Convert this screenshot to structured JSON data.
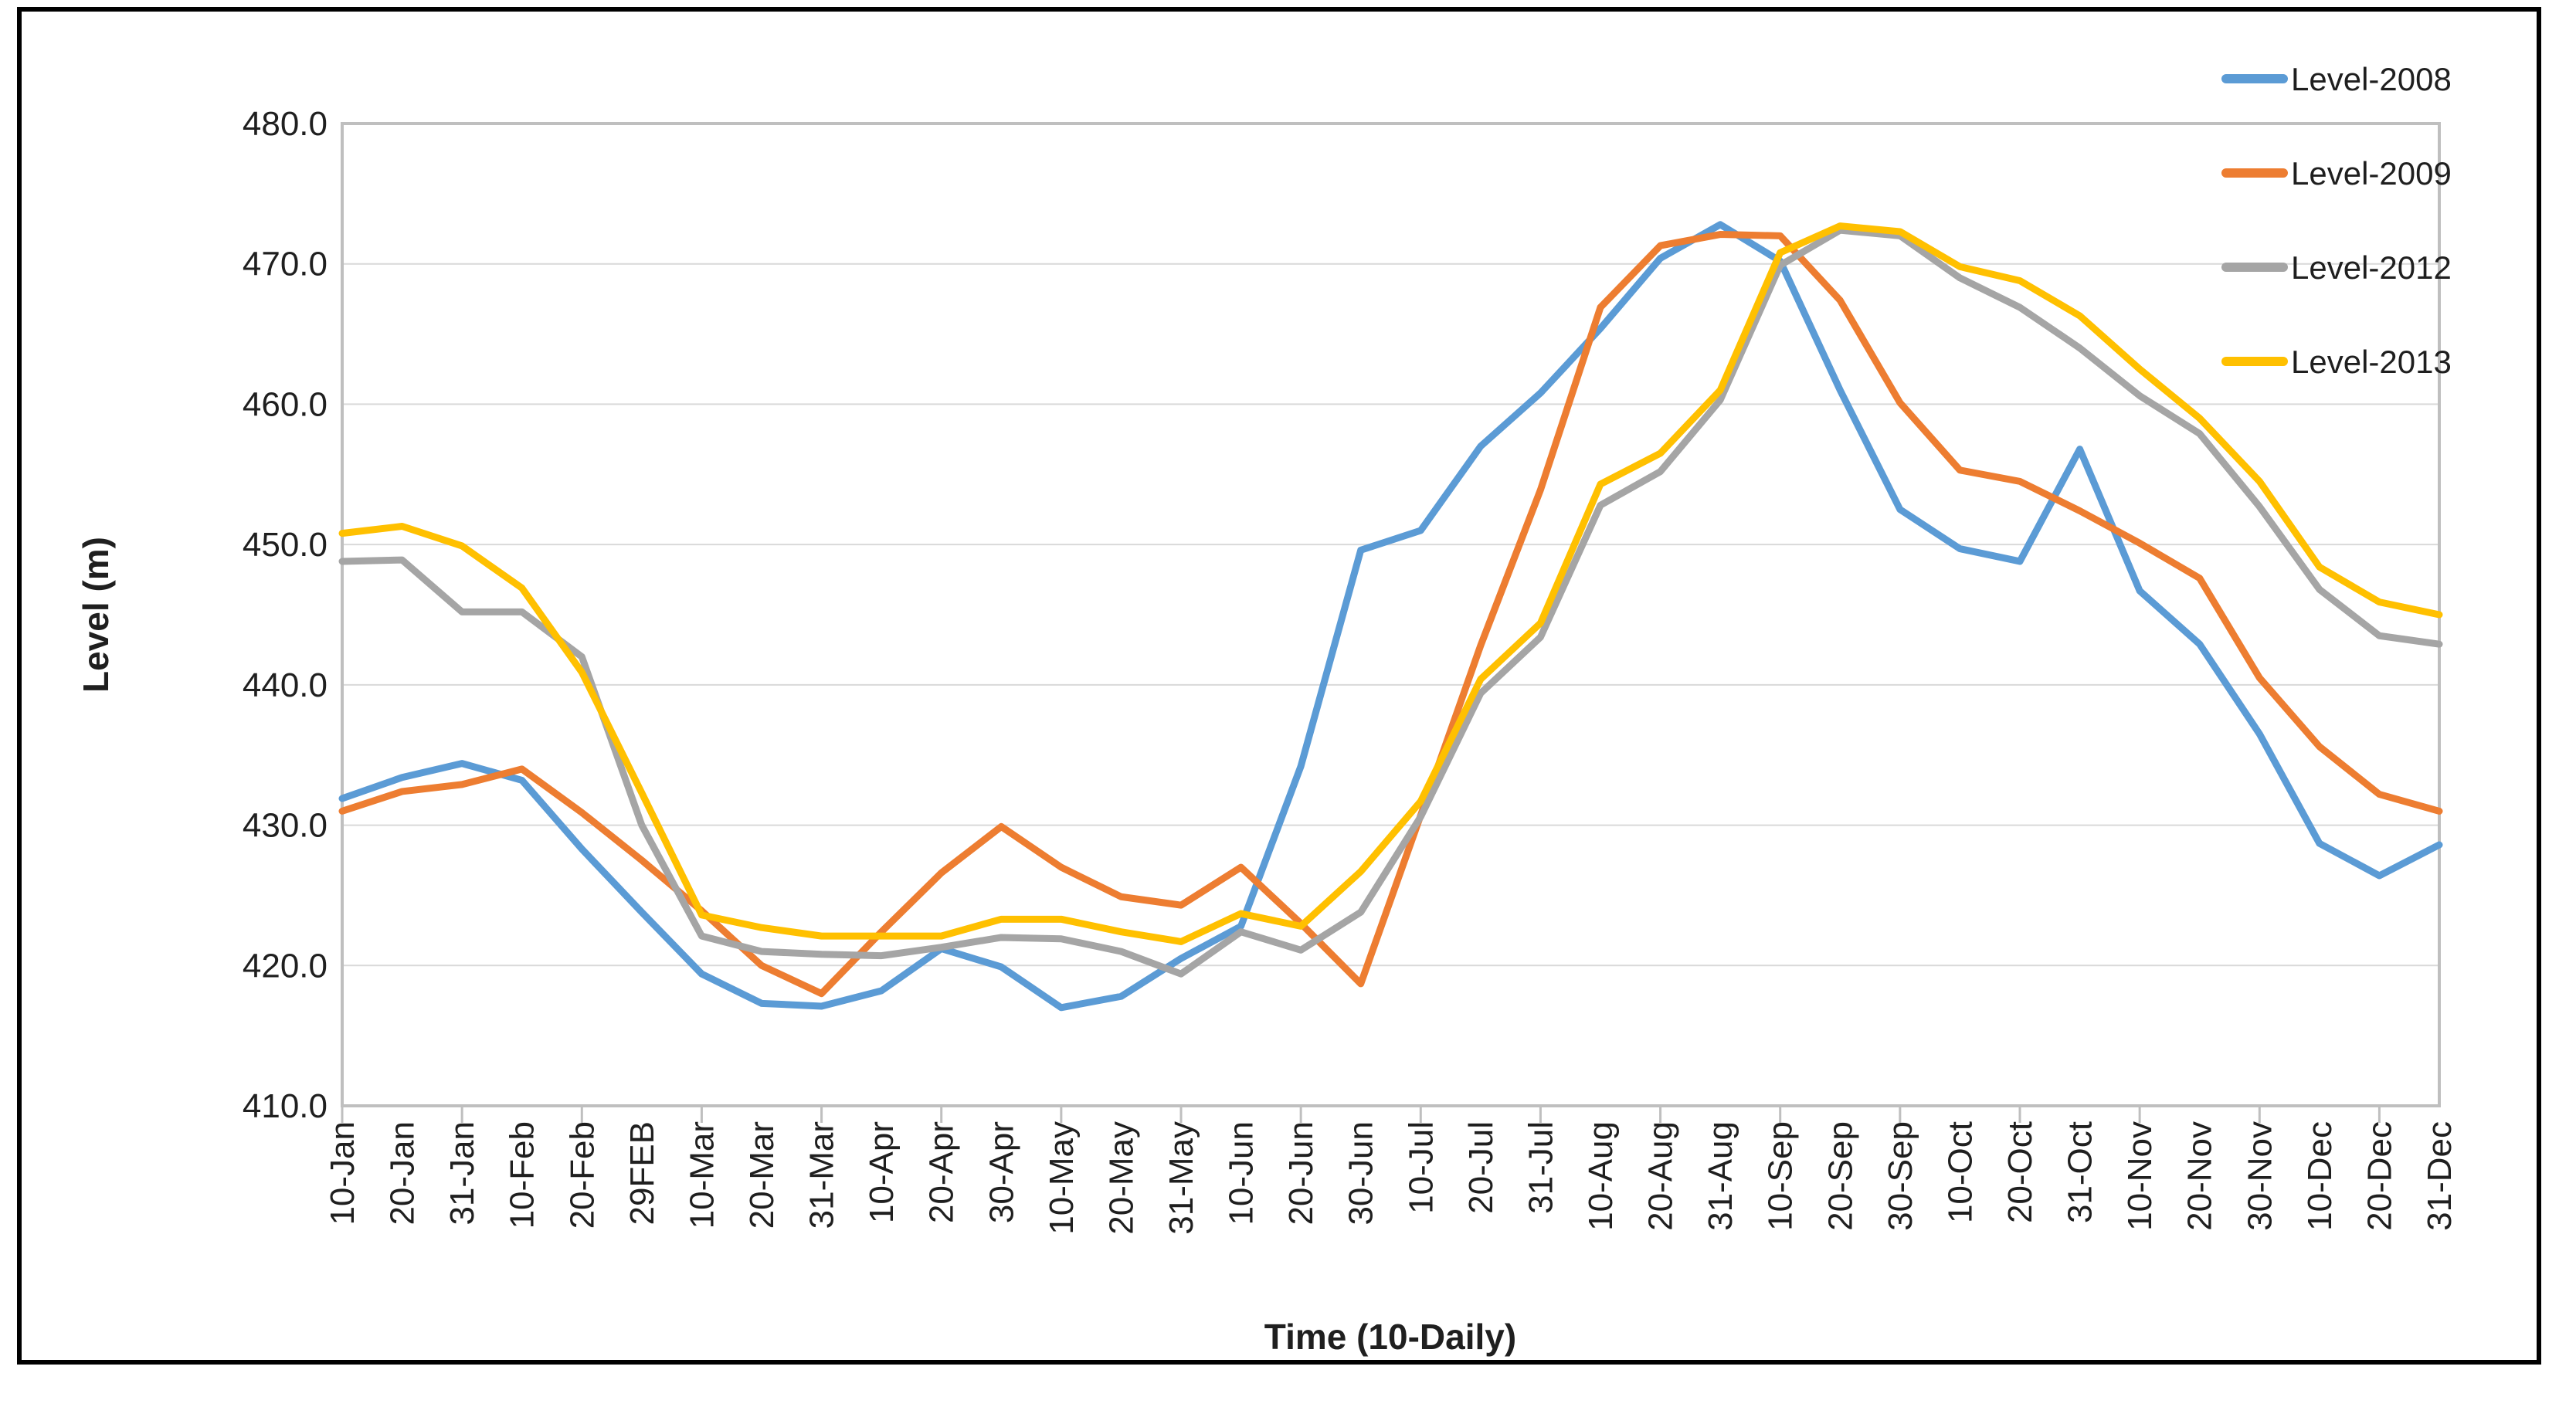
{
  "chart_data": {
    "type": "line",
    "title": "",
    "xlabel": "Time (10-Daily)",
    "ylabel": "Level (m)",
    "ylim": [
      410.0,
      480.0
    ],
    "ytick_step": 10,
    "ytick_labels": [
      "410.0",
      "420.0",
      "430.0",
      "440.0",
      "450.0",
      "460.0",
      "470.0",
      "480.0"
    ],
    "grid": "horizontal",
    "legend_position": "top-right",
    "categories": [
      "10-Jan",
      "20-Jan",
      "31-Jan",
      "10-Feb",
      "20-Feb",
      "29FEB",
      "10-Mar",
      "20-Mar",
      "31-Mar",
      "10-Apr",
      "20-Apr",
      "30-Apr",
      "10-May",
      "20-May",
      "31-May",
      "10-Jun",
      "20-Jun",
      "30-Jun",
      "10-Jul",
      "20-Jul",
      "31-Jul",
      "10-Aug",
      "20-Aug",
      "31-Aug",
      "10-Sep",
      "20-Sep",
      "30-Sep",
      "10-Oct",
      "20-Oct",
      "31-Oct",
      "10-Nov",
      "20-Nov",
      "30-Nov",
      "10-Dec",
      "20-Dec",
      "31-Dec"
    ],
    "series": [
      {
        "name": "Level-2008",
        "color": "#5B9BD5",
        "values": [
          431.9,
          433.4,
          434.4,
          433.2,
          428.3,
          423.8,
          419.4,
          417.3,
          417.1,
          418.2,
          421.2,
          419.9,
          417.0,
          417.8,
          420.5,
          422.8,
          434.2,
          449.6,
          451.0,
          457.0,
          460.8,
          465.4,
          470.4,
          472.8,
          470.2,
          461.0,
          452.5,
          449.7,
          448.8,
          456.8,
          446.7,
          442.9,
          436.5,
          428.7,
          426.4,
          428.6
        ]
      },
      {
        "name": "Level-2009",
        "color": "#ED7D31",
        "values": [
          431.0,
          432.4,
          432.9,
          434.0,
          430.9,
          427.5,
          423.9,
          420.0,
          418.0,
          422.4,
          426.6,
          429.9,
          427.0,
          424.9,
          424.3,
          427.0,
          423.0,
          418.7,
          430.7,
          442.8,
          453.9,
          466.9,
          471.3,
          472.1,
          472.0,
          467.4,
          460.1,
          455.3,
          454.5,
          452.4,
          450.1,
          447.6,
          440.5,
          435.6,
          432.2,
          431.0
        ]
      },
      {
        "name": "Level-2012",
        "color": "#A5A5A5",
        "values": [
          448.8,
          448.9,
          445.2,
          445.2,
          442.0,
          430.0,
          422.1,
          421.0,
          420.8,
          420.7,
          421.3,
          422.0,
          421.9,
          421.0,
          419.4,
          422.4,
          421.1,
          423.8,
          430.6,
          439.4,
          443.4,
          452.8,
          455.2,
          460.3,
          469.9,
          472.4,
          472.0,
          469.0,
          466.9,
          464.0,
          460.6,
          457.9,
          452.7,
          446.8,
          443.5,
          442.9
        ]
      },
      {
        "name": "Level-2013",
        "color": "#FFC000",
        "values": [
          450.8,
          451.3,
          449.9,
          446.9,
          440.9,
          432.3,
          423.6,
          422.7,
          422.1,
          422.1,
          422.1,
          423.3,
          423.3,
          422.4,
          421.7,
          423.7,
          422.8,
          426.7,
          431.7,
          440.4,
          444.4,
          454.3,
          456.5,
          461.0,
          470.8,
          472.7,
          472.3,
          469.8,
          468.8,
          466.3,
          462.5,
          459.0,
          454.5,
          448.4,
          445.9,
          445.0
        ]
      }
    ],
    "styles": {
      "gridline_color": "#D9D9D9",
      "plot_border_color": "#BFBFBF",
      "outer_border_color": "#000000",
      "text_color": "#1f1f1f",
      "background": "#FFFFFF"
    }
  }
}
